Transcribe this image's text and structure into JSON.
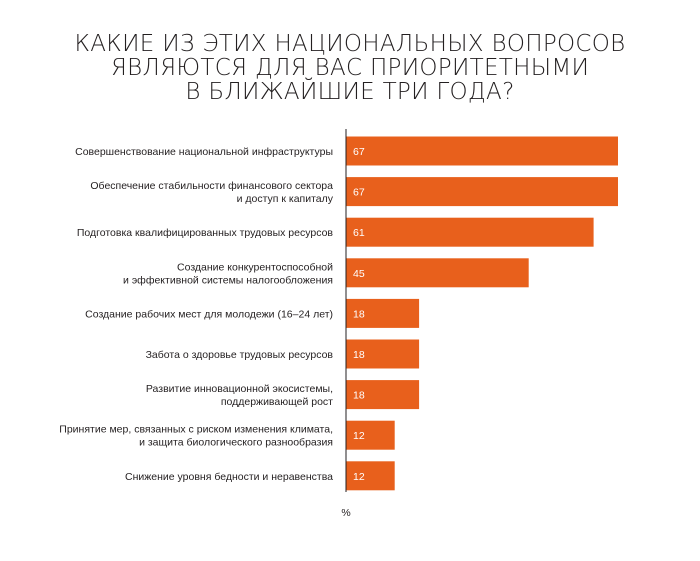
{
  "title_lines": [
    "КАКИЕ ИЗ ЭТИХ НАЦИОНАЛЬНЫХ ВОПРОСОВ",
    "ЯВЛЯЮТСЯ ДЛЯ ВАС ПРИОРИТЕТНЫМИ",
    "В БЛИЖАЙШИЕ ТРИ ГОДА?"
  ],
  "chart_data": {
    "type": "bar",
    "orientation": "horizontal",
    "title": "КАКИЕ ИЗ ЭТИХ НАЦИОНАЛЬНЫХ ВОПРОСОВ ЯВЛЯЮТСЯ ДЛЯ ВАС ПРИОРИТЕТНЫМИ В БЛИЖАЙШИЕ ТРИ ГОДА?",
    "categories": [
      [
        "Совершенствование национальной инфраструктуры"
      ],
      [
        "Обеспечение стабильности финансового сектора",
        "и доступ к капиталу"
      ],
      [
        "Подготовка квалифицированных трудовых ресурсов"
      ],
      [
        "Создание конкурентоспособной",
        "и эффективной системы налогообложения"
      ],
      [
        "Создание рабочих мест для молодежи (16–24 лет)"
      ],
      [
        "Забота о здоровье трудовых ресурсов"
      ],
      [
        "Развитие инновационной экосистемы,",
        "поддерживающей рост"
      ],
      [
        "Принятие мер, связанных с риском изменения климата,",
        "и защита биологического разнообразия"
      ],
      [
        "Снижение уровня бедности и неравенства"
      ]
    ],
    "values": [
      67,
      67,
      61,
      45,
      18,
      18,
      18,
      12,
      12
    ],
    "value_labels": [
      "67",
      "67",
      "61",
      "45",
      "18",
      "18",
      "18",
      "12",
      "12"
    ],
    "unit": "%",
    "xlim": [
      0,
      67
    ],
    "bar_color": "#e8601c",
    "axis_color": "#231f20",
    "grid": false,
    "legend": "none"
  }
}
